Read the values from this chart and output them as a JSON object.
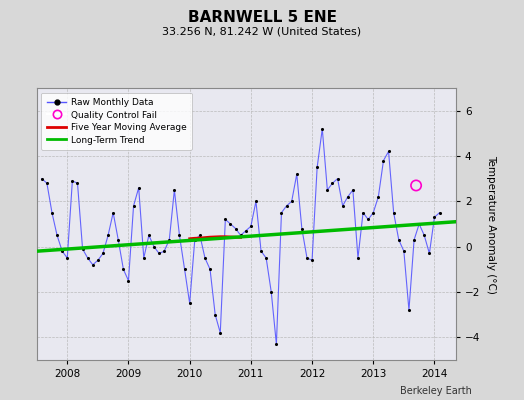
{
  "title": "BARNWELL 5 ENE",
  "subtitle": "33.256 N, 81.242 W (United States)",
  "ylabel": "Temperature Anomaly (°C)",
  "credit": "Berkeley Earth",
  "background_color": "#d8d8d8",
  "plot_bg_color": "#e8e8f0",
  "ylim": [
    -5,
    7
  ],
  "yticks": [
    -4,
    -2,
    0,
    2,
    4,
    6
  ],
  "xlim": [
    2007.5,
    2014.35
  ],
  "xticks": [
    2008,
    2009,
    2010,
    2011,
    2012,
    2013,
    2014
  ],
  "raw_data": [
    [
      2007.583,
      3.0
    ],
    [
      2007.667,
      2.8
    ],
    [
      2007.75,
      1.5
    ],
    [
      2007.833,
      0.5
    ],
    [
      2007.917,
      -0.2
    ],
    [
      2008.0,
      -0.5
    ],
    [
      2008.083,
      2.9
    ],
    [
      2008.167,
      2.8
    ],
    [
      2008.25,
      -0.1
    ],
    [
      2008.333,
      -0.5
    ],
    [
      2008.417,
      -0.8
    ],
    [
      2008.5,
      -0.6
    ],
    [
      2008.583,
      -0.3
    ],
    [
      2008.667,
      0.5
    ],
    [
      2008.75,
      1.5
    ],
    [
      2008.833,
      0.3
    ],
    [
      2008.917,
      -1.0
    ],
    [
      2009.0,
      -1.5
    ],
    [
      2009.083,
      1.8
    ],
    [
      2009.167,
      2.6
    ],
    [
      2009.25,
      -0.5
    ],
    [
      2009.333,
      0.5
    ],
    [
      2009.417,
      0.0
    ],
    [
      2009.5,
      -0.3
    ],
    [
      2009.583,
      -0.2
    ],
    [
      2009.667,
      0.3
    ],
    [
      2009.75,
      2.5
    ],
    [
      2009.833,
      0.5
    ],
    [
      2009.917,
      -1.0
    ],
    [
      2010.0,
      -2.5
    ],
    [
      2010.083,
      0.3
    ],
    [
      2010.167,
      0.5
    ],
    [
      2010.25,
      -0.5
    ],
    [
      2010.333,
      -1.0
    ],
    [
      2010.417,
      -3.0
    ],
    [
      2010.5,
      -3.8
    ],
    [
      2010.583,
      1.2
    ],
    [
      2010.667,
      1.0
    ],
    [
      2010.75,
      0.8
    ],
    [
      2010.833,
      0.5
    ],
    [
      2010.917,
      0.7
    ],
    [
      2011.0,
      0.9
    ],
    [
      2011.083,
      2.0
    ],
    [
      2011.167,
      -0.2
    ],
    [
      2011.25,
      -0.5
    ],
    [
      2011.333,
      -2.0
    ],
    [
      2011.417,
      -4.3
    ],
    [
      2011.5,
      1.5
    ],
    [
      2011.583,
      1.8
    ],
    [
      2011.667,
      2.0
    ],
    [
      2011.75,
      3.2
    ],
    [
      2011.833,
      0.8
    ],
    [
      2011.917,
      -0.5
    ],
    [
      2012.0,
      -0.6
    ],
    [
      2012.083,
      3.5
    ],
    [
      2012.167,
      5.2
    ],
    [
      2012.25,
      2.5
    ],
    [
      2012.333,
      2.8
    ],
    [
      2012.417,
      3.0
    ],
    [
      2012.5,
      1.8
    ],
    [
      2012.583,
      2.2
    ],
    [
      2012.667,
      2.5
    ],
    [
      2012.75,
      -0.5
    ],
    [
      2012.833,
      1.5
    ],
    [
      2012.917,
      1.2
    ],
    [
      2013.0,
      1.5
    ],
    [
      2013.083,
      2.2
    ],
    [
      2013.167,
      3.8
    ],
    [
      2013.25,
      4.2
    ],
    [
      2013.333,
      1.5
    ],
    [
      2013.417,
      0.3
    ],
    [
      2013.5,
      -0.2
    ],
    [
      2013.583,
      -2.8
    ],
    [
      2013.667,
      0.3
    ],
    [
      2013.75,
      1.0
    ],
    [
      2013.833,
      0.5
    ],
    [
      2013.917,
      -0.3
    ],
    [
      2014.0,
      1.3
    ],
    [
      2014.083,
      1.5
    ]
  ],
  "qc_fail": [
    [
      2013.7,
      2.7
    ]
  ],
  "moving_avg_x": [
    2010.0,
    2010.083,
    2010.167,
    2010.25,
    2010.333,
    2010.417,
    2010.5,
    2010.583,
    2010.667,
    2010.75,
    2010.833
  ],
  "moving_avg_y": [
    0.35,
    0.37,
    0.38,
    0.4,
    0.42,
    0.43,
    0.44,
    0.44,
    0.43,
    0.42,
    0.41
  ],
  "trend_x": [
    2007.5,
    2014.35
  ],
  "trend_y": [
    -0.2,
    1.1
  ],
  "line_color": "#5555ff",
  "marker_color": "#000000",
  "ma_color": "#dd0000",
  "trend_color": "#00bb00",
  "qc_color": "#ff00cc",
  "grid_color": "#bbbbbb"
}
